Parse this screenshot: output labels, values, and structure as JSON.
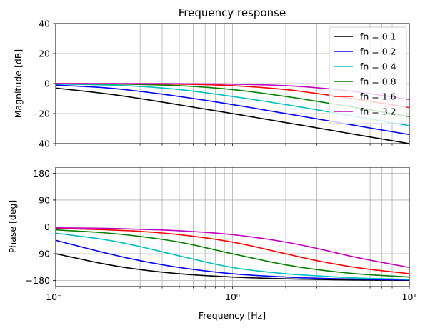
{
  "title": "Frequency response",
  "xlabel": "Frequency [Hz]",
  "chart_data": [
    {
      "type": "line",
      "ylabel": "Magnitude [dB]",
      "xscale": "log",
      "xlim": [
        0.1,
        10
      ],
      "ylim": [
        -40,
        40
      ],
      "yticks": [
        "40",
        "20",
        "0",
        "−20",
        "−40"
      ],
      "ytick_values": [
        40,
        20,
        0,
        -20,
        -40
      ],
      "grid": true,
      "legend_position": "top-right",
      "x": [
        0.1,
        0.2,
        0.3,
        0.5,
        1,
        2,
        3,
        5,
        10
      ],
      "series": [
        {
          "name": "fn = 0.1",
          "color": "#000000",
          "values": [
            -3.0,
            -7.0,
            -10.0,
            -14.2,
            -20.0,
            -26.0,
            -29.5,
            -34.0,
            -40.0
          ]
        },
        {
          "name": "fn = 0.2",
          "color": "#0000ff",
          "values": [
            -1.0,
            -3.0,
            -5.2,
            -8.6,
            -14.0,
            -20.0,
            -23.5,
            -28.0,
            -34.0
          ]
        },
        {
          "name": "fn = 0.4",
          "color": "#00bfbf",
          "values": [
            -0.3,
            -1.0,
            -1.9,
            -4.0,
            -8.6,
            -14.0,
            -17.5,
            -22.0,
            -28.0
          ]
        },
        {
          "name": "fn = 0.8",
          "color": "#008000",
          "values": [
            -0.1,
            -0.3,
            -0.6,
            -1.4,
            -4.0,
            -8.6,
            -11.8,
            -16.0,
            -22.0
          ]
        },
        {
          "name": "fn = 1.6",
          "color": "#ff0000",
          "values": [
            0.0,
            -0.1,
            -0.2,
            -0.4,
            -1.4,
            -4.0,
            -6.6,
            -10.4,
            -16.0
          ]
        },
        {
          "name": "fn = 3.2",
          "color": "#bf00bf",
          "values": [
            0.0,
            0.0,
            0.0,
            -0.1,
            -0.4,
            -1.4,
            -2.8,
            -5.5,
            -10.6
          ]
        }
      ]
    },
    {
      "type": "line",
      "ylabel": "Phase [deg]",
      "xscale": "log",
      "xlim": [
        0.1,
        10
      ],
      "ylim": [
        -200,
        200
      ],
      "yticks": [
        "180",
        "90",
        "0",
        "−90",
        "−180"
      ],
      "ytick_values": [
        180,
        90,
        0,
        -90,
        -180
      ],
      "xticks": [
        "10⁻¹",
        "10⁰",
        "10¹"
      ],
      "grid": true,
      "x": [
        0.1,
        0.2,
        0.3,
        0.5,
        1,
        2,
        3,
        5,
        10
      ],
      "series": [
        {
          "name": "fn = 0.1",
          "color": "#000000",
          "values": [
            -90,
            -127,
            -143,
            -157,
            -168,
            -174,
            -176,
            -178,
            -179
          ]
        },
        {
          "name": "fn = 0.2",
          "color": "#0000ff",
          "values": [
            -45,
            -90,
            -113,
            -136,
            -157,
            -168,
            -172,
            -175,
            -178
          ]
        },
        {
          "name": "fn = 0.4",
          "color": "#00bfbf",
          "values": [
            -21,
            -45,
            -66,
            -97,
            -136,
            -157,
            -164,
            -171,
            -176
          ]
        },
        {
          "name": "fn = 0.8",
          "color": "#008000",
          "values": [
            -10,
            -21,
            -32,
            -51,
            -90,
            -127,
            -143,
            -157,
            -168
          ]
        },
        {
          "name": "fn = 1.6",
          "color": "#ff0000",
          "values": [
            -5,
            -10,
            -15,
            -26,
            -51,
            -90,
            -113,
            -136,
            -157
          ]
        },
        {
          "name": "fn = 3.2",
          "color": "#bf00bf",
          "values": [
            -3,
            -5,
            -8,
            -13,
            -26,
            -51,
            -72,
            -102,
            -136
          ]
        }
      ]
    }
  ]
}
